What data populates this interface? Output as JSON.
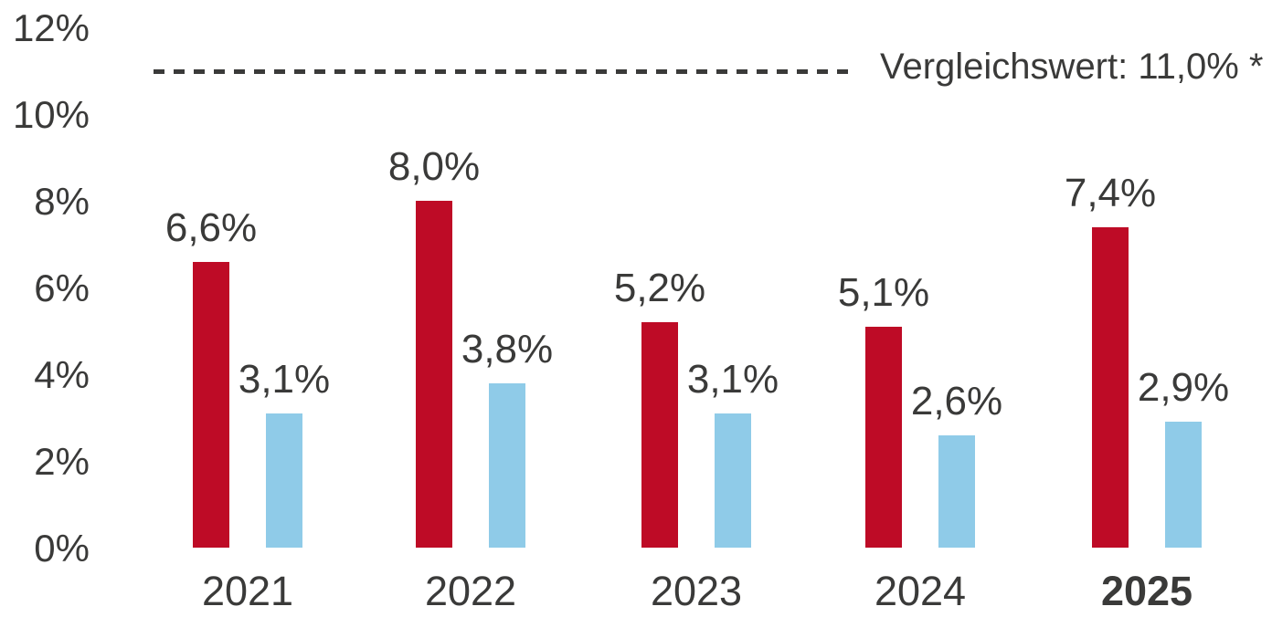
{
  "chart_data": {
    "type": "bar",
    "title": "",
    "categories": [
      "2021",
      "2022",
      "2023",
      "2024",
      "2025"
    ],
    "highlight_category": "2025",
    "series": [
      {
        "name": "primary",
        "color": "#BE0B26",
        "values": [
          6.6,
          8.0,
          5.2,
          5.1,
          7.4
        ],
        "labels": [
          "6,6%",
          "8,0%",
          "5,2%",
          "5,1%",
          "7,4%"
        ]
      },
      {
        "name": "secondary",
        "color": "#8FCBE8",
        "values": [
          3.1,
          3.8,
          3.1,
          2.6,
          2.9
        ],
        "labels": [
          "3,1%",
          "3,8%",
          "3,1%",
          "2,6%",
          "2,9%"
        ]
      }
    ],
    "reference_line": {
      "value": 11.0,
      "label": "Vergleichswert: 11,0% *",
      "style": "dashed",
      "color": "#3A3A39"
    },
    "y_axis": {
      "range": [
        0,
        12
      ],
      "ticks": [
        0,
        2,
        4,
        6,
        8,
        10,
        12
      ],
      "tick_labels": [
        "0%",
        "2%",
        "4%",
        "6%",
        "8%",
        "10%",
        "12%"
      ]
    },
    "legend": "none",
    "grid": "off"
  },
  "colors": {
    "bar_primary": "#BE0B26",
    "bar_secondary": "#8FCBE8",
    "text": "#3A3A39",
    "background": "#FFFFFF"
  }
}
